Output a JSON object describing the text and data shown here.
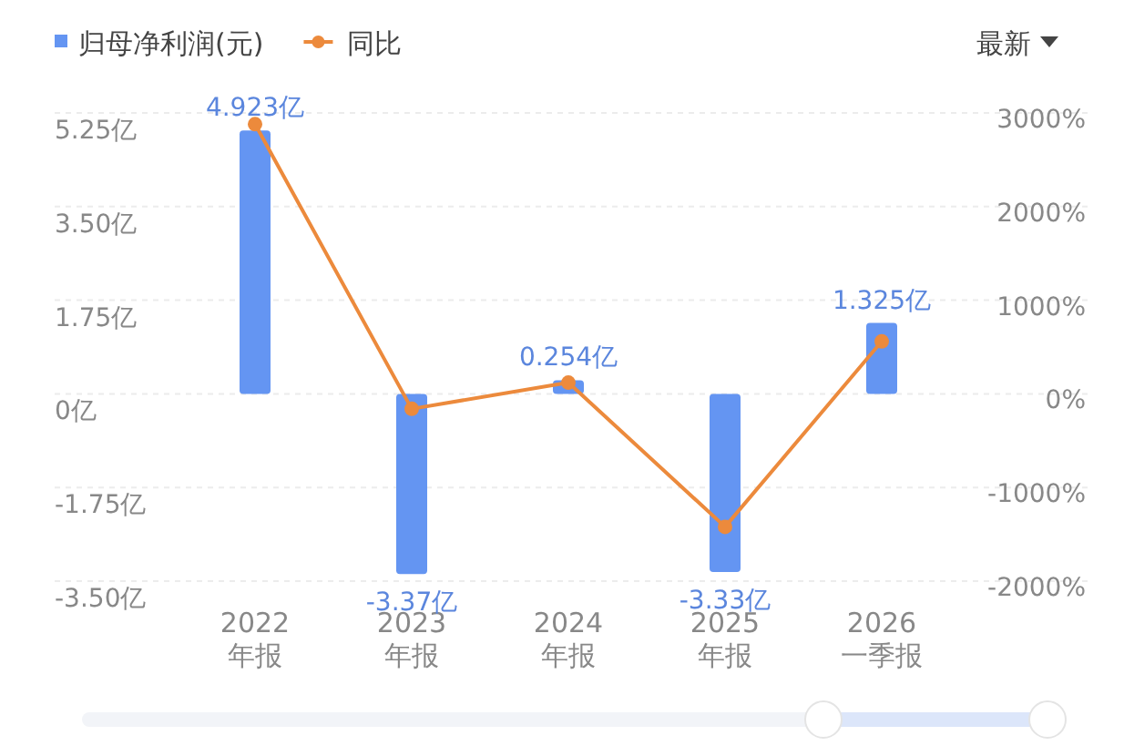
{
  "chart_data": {
    "type": "bar",
    "categories": [
      "2022\n年报",
      "2023\n年报",
      "2024\n年报",
      "2025\n年报",
      "2026\n一季报"
    ],
    "series": [
      {
        "name": "归母净利润(元)",
        "color": "#6495f2",
        "values": [
          4.923,
          -3.37,
          0.254,
          -3.33,
          1.325
        ],
        "value_labels": [
          "4.923亿",
          "-3.37亿",
          "0.254亿",
          "-3.33亿",
          "1.325亿"
        ]
      },
      {
        "name": "同比",
        "type": "line",
        "axis": "y2",
        "color": "#ec8a3c",
        "marker": "circle",
        "values": [
          2880,
          -160,
          120,
          -1420,
          560
        ]
      }
    ],
    "ylim": [
      -3.5,
      5.25
    ],
    "yticks": [
      {
        "value": -3.5,
        "label": "-3.50亿"
      },
      {
        "value": -1.75,
        "label": "-1.75亿"
      },
      {
        "value": 0,
        "label": "0亿"
      },
      {
        "value": 1.75,
        "label": "1.75亿"
      },
      {
        "value": 3.5,
        "label": "3.50亿"
      },
      {
        "value": 5.25,
        "label": "5.25亿"
      }
    ],
    "y2lim": [
      -2000,
      3000
    ],
    "y2ticks": [
      {
        "value": -2000,
        "label": "-2000%"
      },
      {
        "value": -1000,
        "label": "-1000%"
      },
      {
        "value": 0,
        "label": "0%"
      },
      {
        "value": 1000,
        "label": "1000%"
      },
      {
        "value": 2000,
        "label": "2000%"
      },
      {
        "value": 3000,
        "label": "3000%"
      }
    ],
    "grid": "y",
    "legend": "top left",
    "annotations": [
      "最新"
    ]
  }
}
